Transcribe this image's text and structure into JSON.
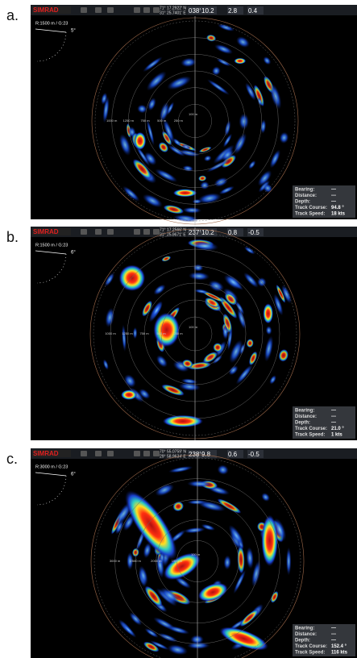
{
  "panels": [
    {
      "label": "a.",
      "header": {
        "brand": "SIMRAD",
        "lat": "71° 17.2922' N",
        "lon": "31° 25.7401' E",
        "heading": "038°",
        "speed": "10.2",
        "depth": "2.8",
        "pitch": "0.4"
      },
      "range": "R:1500 m / G:23",
      "tilt": "5°",
      "rings": [
        "1000 m",
        "1250 m",
        "750 m",
        "500 m",
        "250 m"
      ],
      "center_ring": "100 m",
      "info": [
        {
          "key": "Bearing:",
          "value": "---"
        },
        {
          "key": "Distance:",
          "value": "---"
        },
        {
          "key": "Depth:",
          "value": "---"
        },
        {
          "key": "Track Course:",
          "value": "94.8 °"
        },
        {
          "key": "Track Speed:",
          "value": "18 kts"
        }
      ]
    },
    {
      "label": "b.",
      "header": {
        "brand": "SIMRAD",
        "lat": "71° 17.2566' N",
        "lon": "31° 25.9671' E",
        "heading": "237°",
        "speed": "10.2",
        "depth": "0.8",
        "pitch": "-0.5"
      },
      "range": "R:1500 m / G:23",
      "tilt": "6°",
      "rings": [
        "1000 m",
        "1250 m",
        "750 m",
        "500 m",
        "250 m"
      ],
      "center_ring": "100 m",
      "info": [
        {
          "key": "Bearing:",
          "value": "---"
        },
        {
          "key": "Distance:",
          "value": "---"
        },
        {
          "key": "Depth:",
          "value": "---"
        },
        {
          "key": "Track Course:",
          "value": "21.0 °"
        },
        {
          "key": "Track Speed:",
          "value": "1 kts"
        }
      ]
    },
    {
      "label": "c.",
      "header": {
        "brand": "SIMRAD",
        "lat": "70° 55.0759' N",
        "lon": "29° 58.9634' E",
        "heading": "238°",
        "speed": "9.8",
        "depth": "0.6",
        "pitch": "-0.5"
      },
      "range": "R:3000 m / G:23",
      "tilt": "6°",
      "rings": [
        "3000 m",
        "2500 m",
        "2000 m",
        "1500 m"
      ],
      "center_ring": "100 m",
      "info": [
        {
          "key": "Bearing:",
          "value": "---"
        },
        {
          "key": "Distance:",
          "value": "---"
        },
        {
          "key": "Depth:",
          "value": "---"
        },
        {
          "key": "Track Course:",
          "value": "152.4 °"
        },
        {
          "key": "Track Speed:",
          "value": "116 kts"
        }
      ]
    }
  ]
}
